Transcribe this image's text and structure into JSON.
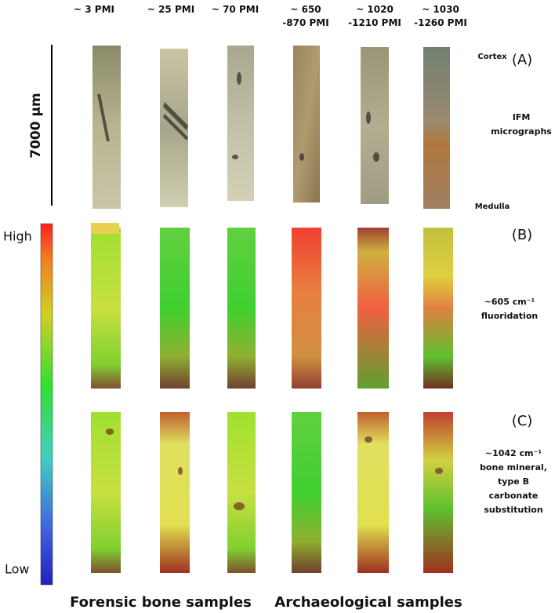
{
  "columns": [
    {
      "lines": [
        "~ 3 PMI"
      ]
    },
    {
      "lines": [
        "~ 25 PMI"
      ]
    },
    {
      "lines": [
        "~ 70 PMI"
      ]
    },
    {
      "lines": [
        "~ 650",
        "-870 PMI"
      ]
    },
    {
      "lines": [
        "~ 1020",
        "-1210 PMI"
      ]
    },
    {
      "lines": [
        "~ 1030",
        "-1260 PMI"
      ]
    }
  ],
  "scale_bar": "7000 µm",
  "orientation": {
    "top": "Cortex",
    "bottom": "Medulla"
  },
  "rows": [
    {
      "panel": "(A)",
      "lines": [
        "IFM",
        "micrographs"
      ]
    },
    {
      "panel": "(B)",
      "lines": [
        "~605 cm⁻¹",
        "fluoridation"
      ]
    },
    {
      "panel": "(C)",
      "lines": [
        "~1042 cm⁻¹",
        "bone mineral,",
        "type B",
        "carbonate",
        "substitution"
      ]
    }
  ],
  "color_scale": {
    "high": "High",
    "low": "Low"
  },
  "groups": [
    "Forensic bone samples",
    "Archaeological samples"
  ]
}
